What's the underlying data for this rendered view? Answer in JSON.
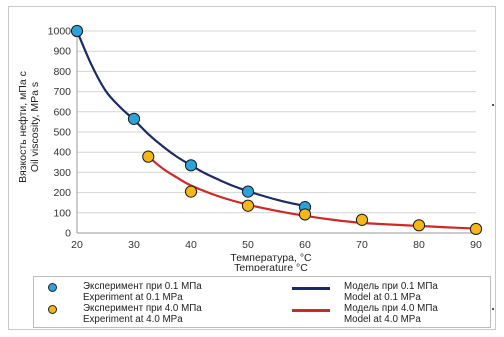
{
  "chart_data": {
    "type": "line",
    "xlabel": [
      "Температура, °С",
      "Temperature °C"
    ],
    "ylabel": [
      "Вязкость нефти, мПа с",
      "Oil viscosity, MPa s"
    ],
    "xlim": [
      20,
      90
    ],
    "ylim": [
      0,
      1000
    ],
    "xticks": [
      20,
      30,
      40,
      50,
      60,
      70,
      80,
      90
    ],
    "yticks": [
      0,
      100,
      200,
      300,
      400,
      500,
      600,
      700,
      800,
      900,
      1000
    ],
    "grid": "horizontal",
    "legend_position": "bottom",
    "series": [
      {
        "name": [
          "Эксперимент при 0.1 МПа",
          "Experiment at 0.1 MPa"
        ],
        "kind": "scatter",
        "color": "#2ca3d8",
        "x": [
          20,
          30,
          40,
          50,
          60
        ],
        "y": [
          1000,
          565,
          335,
          205,
          128
        ]
      },
      {
        "name": [
          "Эксперимент при 4.0 МПа",
          "Experiment at 4.0 MPa"
        ],
        "kind": "scatter",
        "color": "#f4b719",
        "x": [
          32.5,
          40,
          50,
          60,
          70,
          80,
          90
        ],
        "y": [
          378,
          205,
          135,
          92,
          65,
          38,
          20
        ]
      },
      {
        "name": [
          "Модель при 0.1 МПа",
          "Model at 0.1 MPa"
        ],
        "kind": "line",
        "color": "#1c2a66",
        "x": [
          20,
          22.5,
          25,
          27.5,
          30,
          32.5,
          35,
          37.5,
          40,
          42.5,
          45,
          47.5,
          50,
          52.5,
          55,
          57.5,
          60
        ],
        "y": [
          1000,
          835,
          705,
          625,
          560,
          490,
          430,
          378,
          335,
          295,
          262,
          232,
          207,
          185,
          165,
          148,
          133
        ]
      },
      {
        "name": [
          "Модель при 4.0 МПа",
          "Model at 4.0 MPa"
        ],
        "kind": "line",
        "color": "#cc2a2a",
        "x": [
          32.5,
          35,
          37.5,
          40,
          45,
          50,
          55,
          60,
          65,
          70,
          75,
          80,
          85,
          90
        ],
        "y": [
          378,
          320,
          275,
          235,
          180,
          140,
          110,
          85,
          65,
          50,
          42,
          35,
          28,
          22
        ]
      }
    ]
  }
}
